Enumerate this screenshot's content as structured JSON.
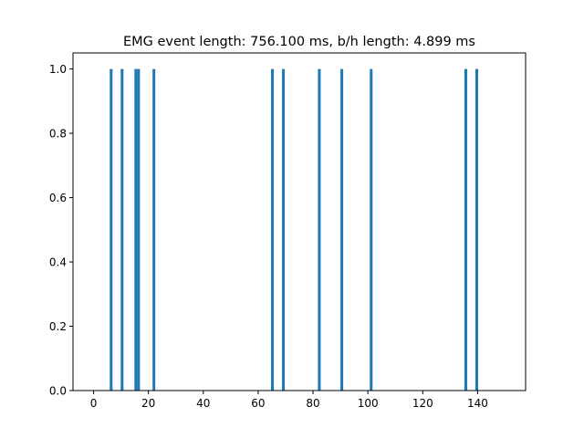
{
  "chart_data": {
    "type": "bar",
    "title": "EMG event length: 756.100 ms, b/h length: 4.899 ms",
    "xlabel": "",
    "ylabel": "",
    "xlim": [
      -7.5,
      157.5
    ],
    "ylim": [
      0,
      1.05
    ],
    "bar_width": 1.0,
    "bar_color": "#1f77b4",
    "grid": false,
    "x_ticks": [
      0,
      20,
      40,
      60,
      80,
      100,
      120,
      140
    ],
    "y_ticks": [
      0.0,
      0.2,
      0.4,
      0.6,
      0.8,
      1.0
    ],
    "x_tick_labels": [
      "0",
      "20",
      "40",
      "60",
      "80",
      "100",
      "120",
      "140"
    ],
    "y_tick_labels": [
      "0.0",
      "0.2",
      "0.4",
      "0.6",
      "0.8",
      "1.0"
    ],
    "bars": [
      {
        "x": 6.4,
        "value": 1
      },
      {
        "x": 10.4,
        "value": 1
      },
      {
        "x": 15.4,
        "value": 1
      },
      {
        "x": 16.4,
        "value": 1
      },
      {
        "x": 22.0,
        "value": 1
      },
      {
        "x": 65.2,
        "value": 1
      },
      {
        "x": 69.2,
        "value": 1
      },
      {
        "x": 82.3,
        "value": 1
      },
      {
        "x": 90.5,
        "value": 1
      },
      {
        "x": 101.2,
        "value": 1
      },
      {
        "x": 135.7,
        "value": 1
      },
      {
        "x": 139.7,
        "value": 1
      }
    ]
  }
}
